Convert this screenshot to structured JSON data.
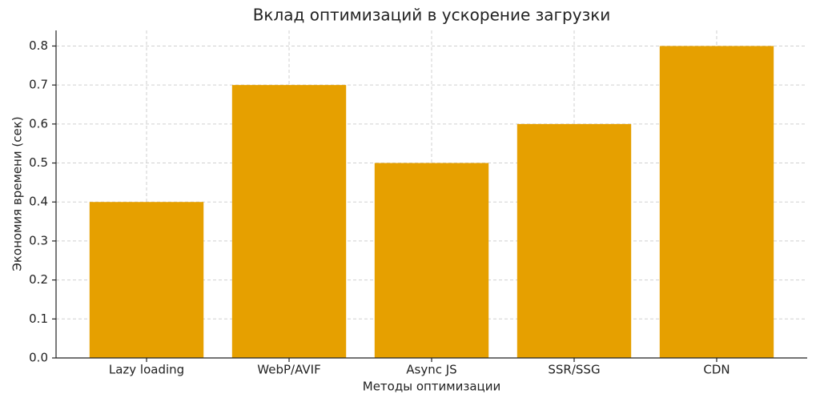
{
  "chart_data": {
    "type": "bar",
    "title": "Вклад оптимизаций в ускорение загрузки",
    "x_label": "Методы оптимизации",
    "y_label": "Экономия времени (сек)",
    "categories": [
      "Lazy loading",
      "WebP/AVIF",
      "Async JS",
      "SSR/SSG",
      "CDN"
    ],
    "values": [
      0.4,
      0.7,
      0.5,
      0.6,
      0.8
    ],
    "color": "#e6a000",
    "ylim": [
      0,
      0.84
    ],
    "yticks": [
      {
        "value": 0,
        "label": "0.0"
      },
      0.1,
      0.2,
      0.3,
      0.4,
      0.5,
      0.6,
      0.7,
      0.8
    ],
    "grid": true
  }
}
